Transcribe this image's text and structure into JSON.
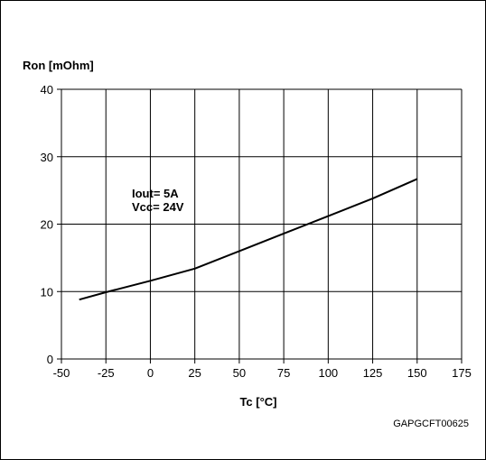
{
  "chart_data": {
    "type": "line",
    "ylabel": "Ron [mOhm]",
    "xlabel": "Tc [°C]",
    "annotation": [
      "Iout= 5A",
      "Vcc= 24V"
    ],
    "figure_code": "GAPGCFT00625",
    "xlim": [
      -50,
      175
    ],
    "ylim": [
      0,
      40
    ],
    "xticks": [
      -50,
      -25,
      0,
      25,
      50,
      75,
      100,
      125,
      150,
      175
    ],
    "yticks": [
      0,
      10,
      20,
      30,
      40
    ],
    "grid": true,
    "series": [
      {
        "x": [
          -40,
          -25,
          0,
          25,
          50,
          75,
          100,
          125,
          150
        ],
        "y": [
          8.8,
          9.9,
          11.6,
          13.4,
          16.0,
          18.6,
          21.2,
          23.8,
          26.7
        ],
        "color": "#000000"
      }
    ]
  }
}
